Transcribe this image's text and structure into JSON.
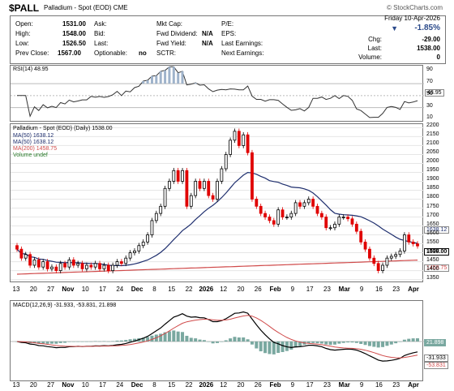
{
  "header": {
    "symbol": "$PALL",
    "title": "Palladium - Spot (EOD) CME",
    "brand": "© StockCharts.com"
  },
  "quote": {
    "labels": {
      "open": "Open:",
      "high": "High:",
      "low": "Low:",
      "prev_close": "Prev Close:",
      "ask": "Ask:",
      "bid": "Bid:",
      "last": "Last:",
      "optionable": "Optionable:",
      "mkt_cap": "Mkt Cap:",
      "fwd_div": "Fwd Dividend:",
      "fwd_yield": "Fwd Yield:",
      "sctr": "SCTR:",
      "pe": "P/E:",
      "eps": "EPS:",
      "last_earn": "Last Earnings:",
      "next_earn": "Next Earnings:",
      "chg": "Chg:",
      "last_r": "Last:",
      "volume": "Volume:"
    },
    "open": "1531.00",
    "high": "1548.00",
    "low": "1526.50",
    "prev_close": "1567.00",
    "optionable": "no",
    "fwd_div": "N/A",
    "fwd_yield": "N/A",
    "date": "Friday 10-Apr-2026",
    "pct": "-1.85%",
    "chg": "-29.00",
    "last": "1538.00",
    "volume": "0"
  },
  "rsi": {
    "label": "RSI(14) 48.95",
    "ticks": [
      "90",
      "70",
      "50",
      "30",
      "10"
    ],
    "tag": "48.95"
  },
  "price": {
    "legend": [
      "Palladium - Spot (EOD) (Daily) 1538.00",
      "MA(50) 1638.12",
      "MA(50) 1638.12",
      "MA(200) 1458.75",
      "Volume undef"
    ],
    "ticks": [
      "2200",
      "2150",
      "2100",
      "2050",
      "2000",
      "1950",
      "1900",
      "1850",
      "1800",
      "1750",
      "1700",
      "1650",
      "1600",
      "1550",
      "1500",
      "1450",
      "1400",
      "1350"
    ],
    "tags": {
      "ma50": "1638.12",
      "last": "1538.00",
      "ma200": "1458.75"
    }
  },
  "macd": {
    "label": "MACD(12,26,9) -31.933, -53.831, 21.898",
    "tags": [
      "21.898",
      "-31.933",
      "-53.831"
    ]
  },
  "xaxis": [
    "13",
    "20",
    "27",
    "Nov",
    "10",
    "17",
    "24",
    "Dec",
    "8",
    "15",
    "22",
    "2026",
    "12",
    "20",
    "26",
    "Feb",
    "9",
    "17",
    "23",
    "Mar",
    "9",
    "16",
    "23",
    "Apr"
  ],
  "colors": {
    "up": "#000000",
    "down": "#e00000",
    "ma50": "#1f2f6e",
    "ma200": "#d04a4a",
    "rsi_fill": "#9fb3cb",
    "hist": "#7aa8a0"
  },
  "chart_data": {
    "type": "candlestick",
    "title": "Palladium - Spot (EOD) (Daily) 1538.00",
    "ylim": [
      1330,
      2220
    ],
    "series": [
      {
        "name": "Palladium - Spot (EOD)",
        "close": [
          1520,
          1470,
          1490,
          1430,
          1460,
          1420,
          1450,
          1410,
          1420,
          1400,
          1440,
          1420,
          1460,
          1430,
          1440,
          1410,
          1430,
          1420,
          1440,
          1410,
          1430,
          1400,
          1430,
          1450,
          1440,
          1470,
          1500,
          1510,
          1540,
          1560,
          1600,
          1680,
          1720,
          1760,
          1860,
          1900,
          1960,
          1900,
          1960,
          1760,
          1820,
          1900,
          1860,
          1900,
          1820,
          1800,
          1900,
          1970,
          2050,
          2130,
          2180,
          2100,
          2160,
          2060,
          1800,
          1760,
          1720,
          1700,
          1680,
          1660,
          1740,
          1700,
          1700,
          1720,
          1780,
          1760,
          1780,
          1800,
          1760,
          1720,
          1700,
          1640,
          1640,
          1660,
          1700,
          1700,
          1690,
          1660,
          1620,
          1560,
          1520,
          1470,
          1440,
          1400,
          1430,
          1470,
          1480,
          1490,
          1510,
          1600,
          1560,
          1550,
          1538
        ]
      },
      {
        "name": "MA(50)",
        "last": 1638.12
      },
      {
        "name": "MA(200)",
        "last": 1458.75
      }
    ]
  }
}
